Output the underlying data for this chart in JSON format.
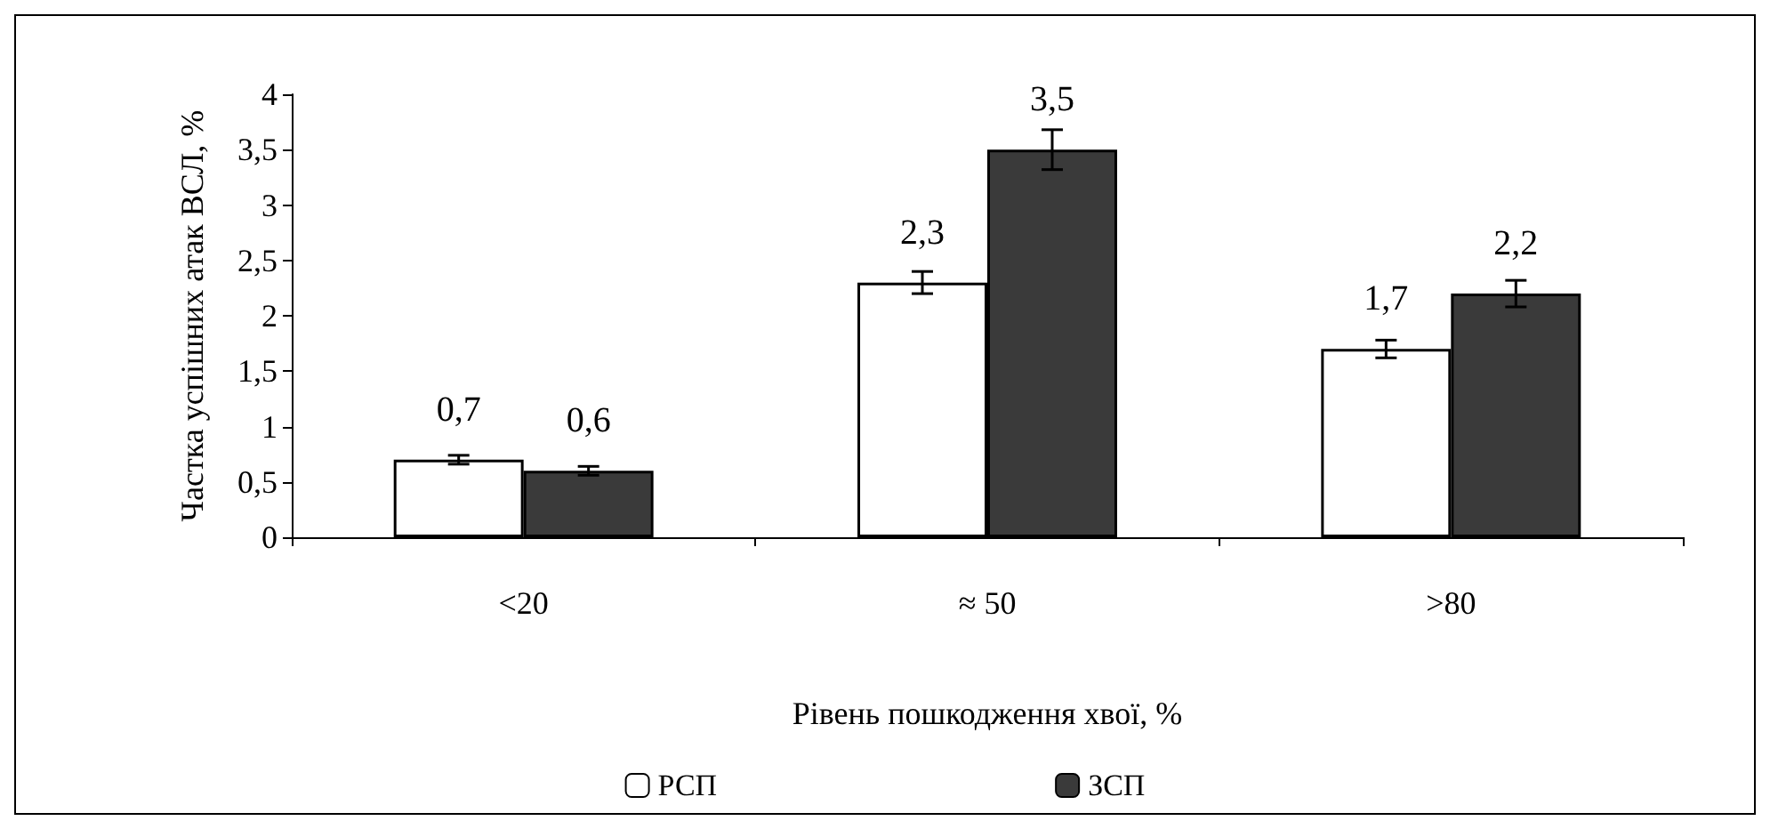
{
  "chart_data": {
    "type": "bar",
    "categories": [
      "<20",
      "≈ 50",
      ">80"
    ],
    "series": [
      {
        "name": "РСП",
        "color": "#ffffff",
        "values": [
          0.7,
          2.3,
          1.7
        ],
        "errors": [
          0.04,
          0.1,
          0.08
        ],
        "value_labels": [
          "0,7",
          "2,3",
          "1,7"
        ]
      },
      {
        "name": "ЗСП",
        "color": "#3a3a3a",
        "values": [
          0.6,
          3.5,
          2.2
        ],
        "errors": [
          0.04,
          0.18,
          0.12
        ],
        "value_labels": [
          "0,6",
          "3,5",
          "2,2"
        ]
      }
    ],
    "xlabel": "Рівень пошкодження хвої, %",
    "ylabel": "Частка успішних атак ВСЛ, %",
    "ylim": [
      0,
      4
    ],
    "yticks": [
      0,
      {
        "value": 0.5,
        "label": "0,5"
      },
      1,
      {
        "value": 1.5,
        "label": "1,5"
      },
      2,
      {
        "value": 2.5,
        "label": "2,5"
      },
      3,
      {
        "value": 3.5,
        "label": "3,5"
      },
      4
    ],
    "grid": false,
    "legend": "bottom"
  }
}
